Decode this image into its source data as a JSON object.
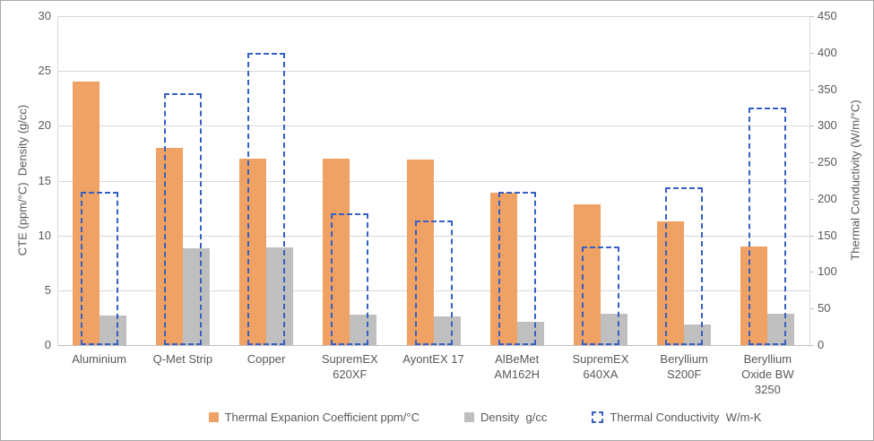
{
  "chart_data": {
    "type": "bar",
    "title": "",
    "categories": [
      "Aluminium",
      "Q-Met Strip",
      "Copper",
      "SupremEX\n620XF",
      "AyontEX 17",
      "AlBeMet\nAM162H",
      "SupremEX\n640XA",
      "Beryllium\nS200F",
      "Beryllium\nOxide  BW\n3250"
    ],
    "series": [
      {
        "name": "Thermal Expanion Coefficient ppm/°C",
        "axis": "left",
        "style": "solid",
        "color": "#f0a164",
        "values": [
          24,
          18,
          17,
          17,
          16.9,
          13.9,
          12.8,
          11.3,
          9
        ]
      },
      {
        "name": "Density  g/cc",
        "axis": "left",
        "style": "solid",
        "color": "#bfbfbf",
        "values": [
          2.7,
          8.8,
          8.9,
          2.8,
          2.6,
          2.1,
          2.9,
          1.85,
          2.9
        ]
      },
      {
        "name": "Thermal Conductivity  W/m-K",
        "axis": "right",
        "style": "dashed-outline",
        "color": "#3560c4",
        "values": [
          210,
          345,
          400,
          180,
          170,
          210,
          135,
          216,
          325
        ]
      }
    ],
    "left_axis": {
      "label": "CTE (ppm/°C)  Density (g/cc)",
      "min": 0,
      "max": 30,
      "step": 5
    },
    "right_axis": {
      "label": "Thermal Conductivity (W/m/°C)",
      "min": 0,
      "max": 450,
      "step": 50
    },
    "grid": true,
    "legend_position": "bottom"
  },
  "colors": {
    "cte_bar": "#f0a164",
    "density_bar": "#bfbfbf",
    "conductivity_outline": "#3560c4",
    "gridline": "#d9d9d9",
    "axis_text": "#595959"
  }
}
